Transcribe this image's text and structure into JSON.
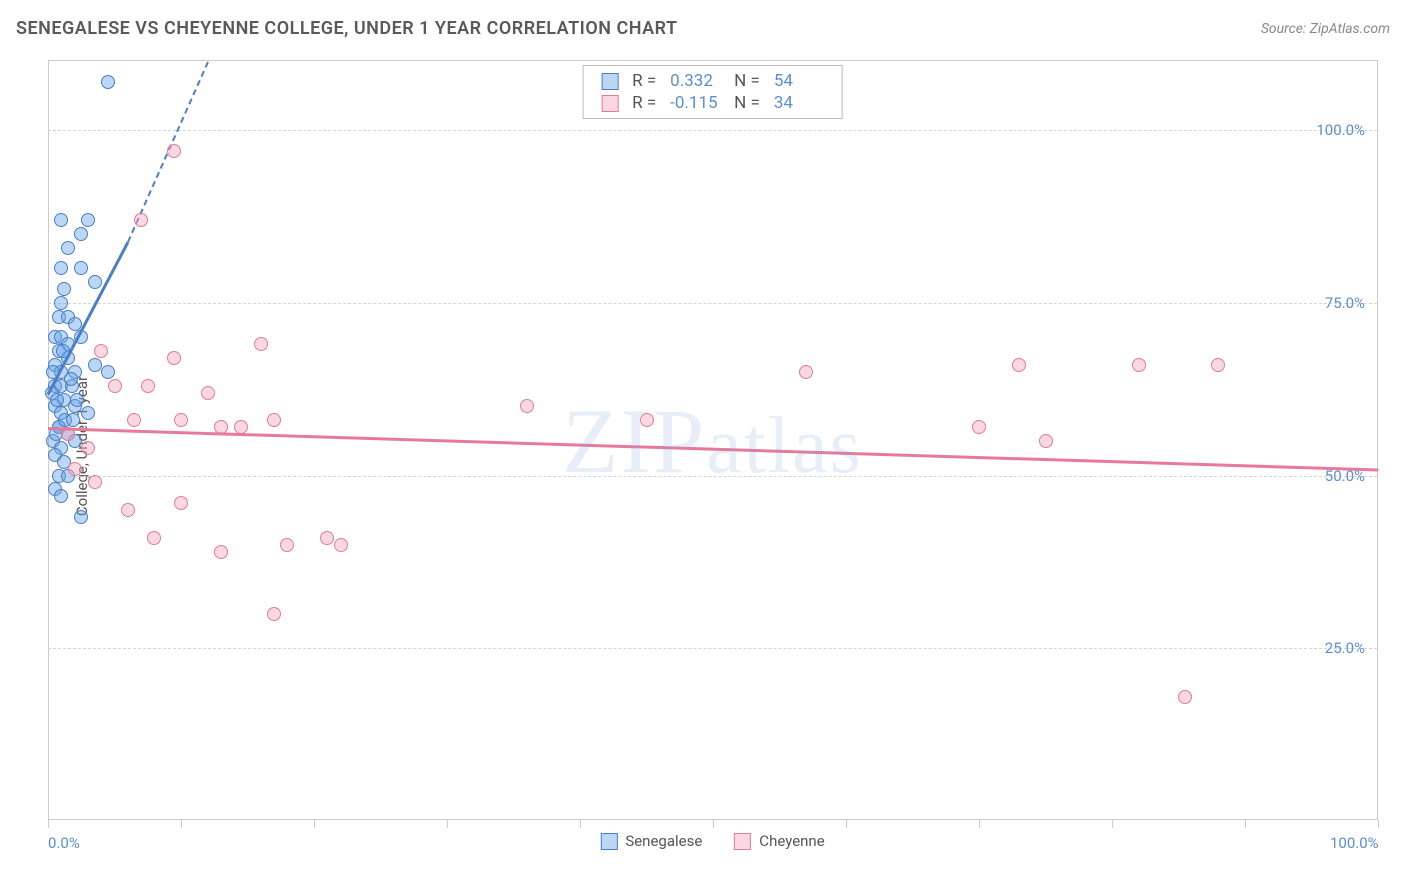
{
  "title": "SENEGALESE VS CHEYENNE COLLEGE, UNDER 1 YEAR CORRELATION CHART",
  "source": "Source: ZipAtlas.com",
  "watermark": "ZIPatlas",
  "y_axis_label": "College, Under 1 year",
  "chart": {
    "type": "scatter",
    "background_color": "#ffffff",
    "grid_color": "#d5d5d5",
    "axis_color": "#cccccc",
    "tick_label_color": "#5b8dd6",
    "text_color": "#555555",
    "xlim": [
      0,
      100
    ],
    "ylim": [
      0,
      110
    ],
    "y_ticks": [
      {
        "value": 25,
        "label": "25.0%"
      },
      {
        "value": 50,
        "label": "50.0%"
      },
      {
        "value": 75,
        "label": "75.0%"
      },
      {
        "value": 100,
        "label": "100.0%"
      }
    ],
    "x_ticks": [
      0,
      10,
      20,
      30,
      40,
      50,
      60,
      70,
      80,
      90,
      100
    ],
    "x_tick_labels": [
      {
        "value": 0,
        "label": "0.0%"
      },
      {
        "value": 100,
        "label": "100.0%"
      }
    ],
    "marker_radius": 7,
    "marker_opacity": 0.55,
    "series": [
      {
        "name": "Senegalese",
        "color": "#6aa3e8",
        "border_color": "#4a7fc5",
        "fill_color": "rgba(106,163,232,0.45)",
        "stats": {
          "R": "0.332",
          "N": "54"
        },
        "trend": {
          "x1": 0,
          "y1": 62,
          "x2": 6,
          "y2": 84,
          "dashed_extend_to_x": 12,
          "dashed_extend_to_y": 110
        },
        "points": [
          [
            4.5,
            107
          ],
          [
            1.0,
            87
          ],
          [
            3.0,
            87
          ],
          [
            2.5,
            85
          ],
          [
            1.5,
            83
          ],
          [
            1.0,
            80
          ],
          [
            2.5,
            80
          ],
          [
            1.2,
            77
          ],
          [
            3.5,
            78
          ],
          [
            1.0,
            75
          ],
          [
            0.8,
            73
          ],
          [
            1.5,
            73
          ],
          [
            2.0,
            72
          ],
          [
            0.5,
            70
          ],
          [
            1.0,
            70
          ],
          [
            1.5,
            69
          ],
          [
            2.5,
            70
          ],
          [
            0.8,
            68
          ],
          [
            1.5,
            67
          ],
          [
            0.5,
            66
          ],
          [
            1.0,
            65
          ],
          [
            2.0,
            65
          ],
          [
            3.5,
            66
          ],
          [
            4.5,
            65
          ],
          [
            0.5,
            63
          ],
          [
            1.0,
            63
          ],
          [
            1.8,
            63
          ],
          [
            0.3,
            62
          ],
          [
            1.2,
            61
          ],
          [
            0.5,
            60
          ],
          [
            1.0,
            59
          ],
          [
            2.0,
            60
          ],
          [
            3.0,
            59
          ],
          [
            0.8,
            57
          ],
          [
            1.5,
            56
          ],
          [
            0.4,
            55
          ],
          [
            1.0,
            54
          ],
          [
            2.0,
            55
          ],
          [
            0.5,
            53
          ],
          [
            1.2,
            52
          ],
          [
            0.8,
            50
          ],
          [
            1.5,
            50
          ],
          [
            0.5,
            48
          ],
          [
            1.0,
            47
          ],
          [
            2.5,
            44
          ],
          [
            0.8,
            57
          ],
          [
            1.3,
            58
          ],
          [
            2.2,
            61
          ],
          [
            1.7,
            64
          ],
          [
            0.6,
            56
          ],
          [
            1.1,
            68
          ],
          [
            0.4,
            65
          ],
          [
            1.9,
            58
          ],
          [
            0.7,
            61
          ]
        ]
      },
      {
        "name": "Cheyenne",
        "color": "#f5a8bd",
        "border_color": "#e77a9a",
        "fill_color": "rgba(245,168,189,0.45)",
        "stats": {
          "R": "-0.115",
          "N": "34"
        },
        "trend": {
          "x1": 0,
          "y1": 57,
          "x2": 100,
          "y2": 51
        },
        "points": [
          [
            9.5,
            97
          ],
          [
            7.0,
            87
          ],
          [
            4.0,
            68
          ],
          [
            9.5,
            67
          ],
          [
            16.0,
            69
          ],
          [
            12.0,
            62
          ],
          [
            6.5,
            58
          ],
          [
            10.0,
            58
          ],
          [
            13.0,
            57
          ],
          [
            14.5,
            57
          ],
          [
            17.0,
            58
          ],
          [
            36.0,
            60
          ],
          [
            45.0,
            58
          ],
          [
            57.0,
            65
          ],
          [
            70.0,
            57
          ],
          [
            75.0,
            55
          ],
          [
            73.0,
            66
          ],
          [
            82.0,
            66
          ],
          [
            88.0,
            66
          ],
          [
            85.5,
            18
          ],
          [
            3.0,
            54
          ],
          [
            2.0,
            51
          ],
          [
            3.5,
            49
          ],
          [
            1.5,
            56
          ],
          [
            6.0,
            45
          ],
          [
            10.0,
            46
          ],
          [
            13.0,
            39
          ],
          [
            18.0,
            40
          ],
          [
            21.0,
            41
          ],
          [
            22.0,
            40
          ],
          [
            17.0,
            30
          ],
          [
            8.0,
            41
          ],
          [
            5.0,
            63
          ],
          [
            7.5,
            63
          ]
        ]
      }
    ],
    "legend_bottom": [
      {
        "label": "Senegalese",
        "fill": "rgba(106,163,232,0.45)",
        "border": "#4a7fc5"
      },
      {
        "label": "Cheyenne",
        "fill": "rgba(245,168,189,0.45)",
        "border": "#e77a9a"
      }
    ],
    "stats_box": [
      {
        "fill": "rgba(106,163,232,0.45)",
        "border": "#4a7fc5",
        "R": "0.332",
        "N": "54"
      },
      {
        "fill": "rgba(245,168,189,0.45)",
        "border": "#e77a9a",
        "R": "-0.115",
        "N": "34"
      }
    ]
  }
}
